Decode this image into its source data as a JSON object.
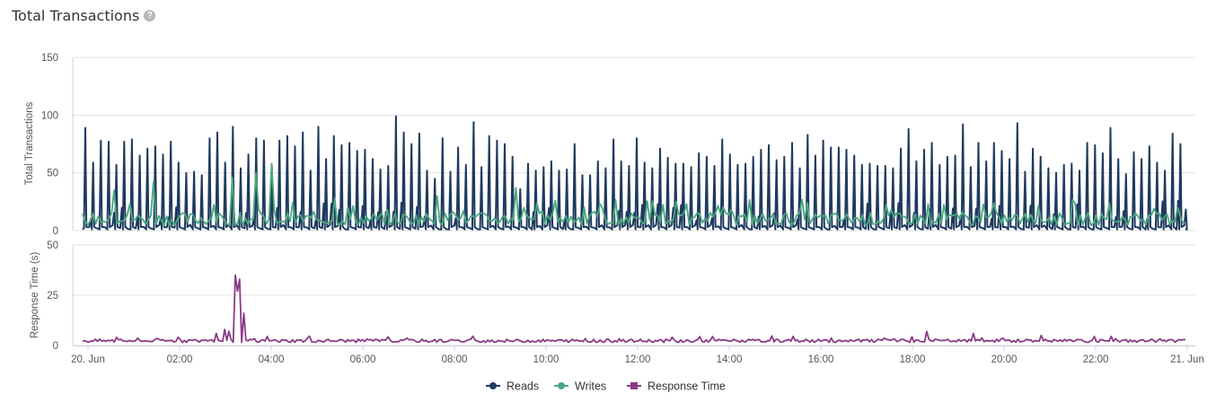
{
  "header": {
    "title": "Total Transactions",
    "help_glyph": "?"
  },
  "colors": {
    "reads": "#1f3a5f",
    "writes": "#4aa87f",
    "response": "#8b3a86",
    "grid": "#e3e3e3",
    "axis": "#c9d3e2"
  },
  "chart_data": [
    {
      "id": "transactions",
      "type": "line",
      "ylabel": "Total Transactions",
      "ylim": [
        0,
        150
      ],
      "yticks": [
        0,
        50,
        100,
        150
      ],
      "grid": true,
      "series": [
        {
          "name": "Reads",
          "key": "reads",
          "peaks": [
            89,
            59,
            78,
            77,
            57,
            77,
            79,
            65,
            71,
            73,
            66,
            77,
            59,
            50,
            51,
            48,
            80,
            85,
            59,
            90,
            54,
            66,
            80,
            78,
            57,
            78,
            82,
            73,
            85,
            52,
            90,
            62,
            82,
            74,
            76,
            69,
            70,
            62,
            53,
            56,
            99,
            85,
            75,
            84,
            52,
            45,
            80,
            51,
            72,
            57,
            94,
            55,
            82,
            78,
            75,
            64,
            36,
            58,
            52,
            55,
            60,
            52,
            53,
            75,
            48,
            48,
            60,
            54,
            79,
            60,
            56,
            80,
            59,
            54,
            71,
            63,
            58,
            58,
            55,
            67,
            64,
            56,
            79,
            66,
            57,
            58,
            64,
            70,
            74,
            61,
            64,
            76,
            54,
            83,
            65,
            78,
            72,
            72,
            70,
            65,
            57,
            58,
            56,
            56,
            54,
            71,
            88,
            60,
            70,
            76,
            57,
            64,
            65,
            92,
            55,
            76,
            60,
            76,
            69,
            62,
            93,
            51,
            71,
            64,
            54,
            50,
            57,
            58,
            52,
            76,
            74,
            67,
            89,
            62,
            49,
            68,
            62,
            73,
            59,
            52,
            84,
            75
          ]
        },
        {
          "name": "Writes",
          "key": "writes",
          "level": 10,
          "bumps": [
            [
              4,
              35
            ],
            [
              9,
              42
            ],
            [
              19,
              46
            ],
            [
              22,
              50
            ],
            [
              24,
              58
            ],
            [
              32,
              28
            ],
            [
              45,
              30
            ],
            [
              55,
              37
            ],
            [
              60,
              26
            ]
          ]
        }
      ]
    },
    {
      "id": "response",
      "type": "line",
      "ylabel": "Response Time (s)",
      "ylim": [
        0,
        50
      ],
      "yticks": [
        0,
        25,
        50
      ],
      "grid": true,
      "series": [
        {
          "name": "Response Time",
          "key": "response",
          "baseline": 1.5,
          "spikes": [
            [
              0.1375,
              35
            ],
            [
              0.1398,
              27
            ],
            [
              0.1425,
              33
            ],
            [
              0.1465,
              16
            ],
            [
              0.128,
              8
            ],
            [
              0.122,
              6
            ],
            [
              0.132,
              7
            ],
            [
              0.765,
              7
            ],
            [
              0.807,
              6
            ],
            [
              0.87,
              5
            ]
          ]
        }
      ]
    }
  ],
  "xaxis": {
    "labels": [
      "20. Jun",
      "02:00",
      "04:00",
      "06:00",
      "08:00",
      "10:00",
      "12:00",
      "14:00",
      "16:00",
      "18:00",
      "20:00",
      "22:00",
      "21. Jun"
    ],
    "range_hours": [
      0,
      24
    ]
  },
  "legend": [
    {
      "label": "Reads",
      "key": "reads"
    },
    {
      "label": "Writes",
      "key": "writes"
    },
    {
      "label": "Response Time",
      "key": "response",
      "marker": "square"
    }
  ]
}
